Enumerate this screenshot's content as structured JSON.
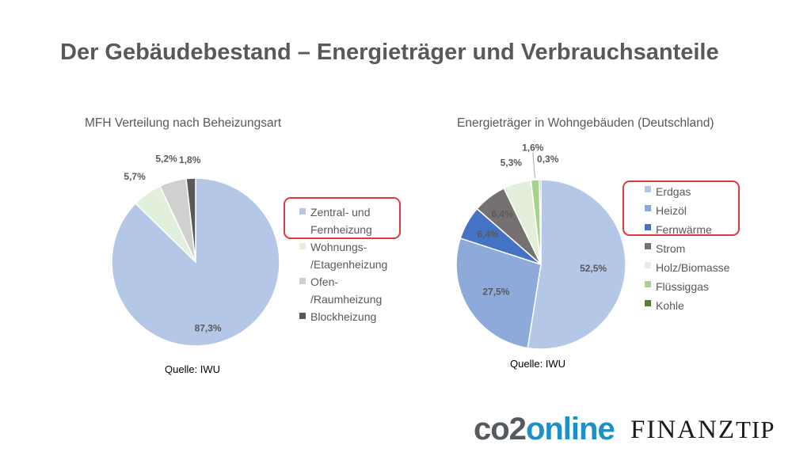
{
  "page": {
    "title": "Der Gebäudebestand – Energieträger und Verbrauchsanteile"
  },
  "colors": {
    "highlight": "#e0383c",
    "text": "#595959"
  },
  "chart_data": [
    {
      "type": "pie",
      "title": "MFH Verteilung nach Beheizungsart",
      "slices": [
        {
          "label": "Zentral- und Fernheizung",
          "value": 87.3,
          "display": "87,3%",
          "color": "#b4c7e7"
        },
        {
          "label": "Wohnungs-/Etagenheizung",
          "value": 5.7,
          "display": "5,7%",
          "color": "#e2efda"
        },
        {
          "label": "Ofen-/Raumheizung",
          "value": 5.2,
          "display": "5,2%",
          "color": "#d0d0d0"
        },
        {
          "label": "Blockheizung",
          "value": 1.8,
          "display": "1,8%",
          "color": "#595959"
        }
      ],
      "legend": [
        {
          "label": "Zentral- und\nFernheizung"
        },
        {
          "label": "Wohnungs-\n/Etagenheizung"
        },
        {
          "label": "Ofen-\n/Raumheizung"
        },
        {
          "label": "Blockheizung"
        }
      ],
      "legend_position": "right",
      "source": "Quelle: IWU"
    },
    {
      "type": "pie",
      "title": "Energieträger in Wohngebäuden (Deutschland)",
      "slices": [
        {
          "label": "Erdgas",
          "value": 52.5,
          "display": "52,5%",
          "color": "#b4c7e7"
        },
        {
          "label": "Heizöl",
          "value": 27.5,
          "display": "27,5%",
          "color": "#8eaadb"
        },
        {
          "label": "Fernwärme",
          "value": 6.4,
          "display": "6,4%",
          "color": "#4472c4"
        },
        {
          "label": "Strom",
          "value": 6.4,
          "display": "6,4%",
          "color": "#767171"
        },
        {
          "label": "Holz/Biomasse",
          "value": 5.3,
          "display": "5,3%",
          "color": "#e2efda"
        },
        {
          "label": "Flüssiggas",
          "value": 1.6,
          "display": "1,6%",
          "color": "#a9d18e"
        },
        {
          "label": "Kohle",
          "value": 0.3,
          "display": "0,3%",
          "color": "#548235"
        }
      ],
      "legend": [
        {
          "label": "Erdgas"
        },
        {
          "label": "Heizöl"
        },
        {
          "label": "Fernwärme"
        },
        {
          "label": "Strom"
        },
        {
          "label": "Holz/Biomasse"
        },
        {
          "label": "Flüssiggas"
        },
        {
          "label": "Kohle"
        }
      ],
      "legend_position": "right",
      "source": "Quelle: IWU"
    }
  ],
  "logos": {
    "co2": "co2",
    "online": "online",
    "finanz": "FINANZ",
    "tip": "TIP"
  }
}
